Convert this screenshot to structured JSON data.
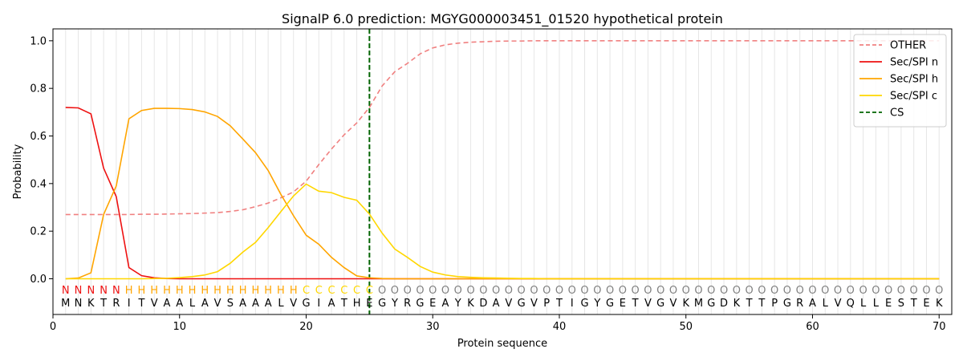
{
  "chart_data": {
    "type": "line",
    "title": "SignalP 6.0 prediction: MGYG000003451_01520 hypothetical protein",
    "xlabel": "Protein sequence",
    "ylabel": "Probability",
    "xlim": [
      0,
      71
    ],
    "ylim": [
      -0.15,
      1.05
    ],
    "xticks": [
      0,
      10,
      20,
      30,
      40,
      50,
      60,
      70
    ],
    "yticks": [
      0.0,
      0.2,
      0.4,
      0.6,
      0.8,
      1.0
    ],
    "grid": "vertical lines at each residue",
    "legend_position": "top-right",
    "x": [
      1,
      2,
      3,
      4,
      5,
      6,
      7,
      8,
      9,
      10,
      11,
      12,
      13,
      14,
      15,
      16,
      17,
      18,
      19,
      20,
      21,
      22,
      23,
      24,
      25,
      26,
      27,
      28,
      29,
      30,
      31,
      32,
      33,
      34,
      35,
      36,
      37,
      38,
      39,
      40,
      41,
      42,
      43,
      44,
      45,
      46,
      47,
      48,
      49,
      50,
      51,
      52,
      53,
      54,
      55,
      56,
      57,
      58,
      59,
      60,
      61,
      62,
      63,
      64,
      65,
      66,
      67,
      68,
      69,
      70
    ],
    "sequence": [
      "M",
      "N",
      "K",
      "T",
      "R",
      "I",
      "T",
      "V",
      "A",
      "A",
      "L",
      "A",
      "V",
      "S",
      "A",
      "A",
      "A",
      "L",
      "V",
      "G",
      "I",
      "A",
      "T",
      "H",
      "E",
      "G",
      "Y",
      "R",
      "G",
      "E",
      "A",
      "Y",
      "K",
      "D",
      "A",
      "V",
      "G",
      "V",
      "P",
      "T",
      "I",
      "G",
      "Y",
      "G",
      "E",
      "T",
      "V",
      "G",
      "V",
      "K",
      "M",
      "G",
      "D",
      "K",
      "T",
      "T",
      "P",
      "G",
      "R",
      "A",
      "L",
      "V",
      "Q",
      "L",
      "L",
      "E",
      "S",
      "T",
      "E",
      "K"
    ],
    "region_labels": [
      "N",
      "N",
      "N",
      "N",
      "N",
      "H",
      "H",
      "H",
      "H",
      "H",
      "H",
      "H",
      "H",
      "H",
      "H",
      "H",
      "H",
      "H",
      "H",
      "C",
      "C",
      "C",
      "C",
      "C",
      "C",
      "O",
      "O",
      "O",
      "O",
      "O",
      "O",
      "O",
      "O",
      "O",
      "O",
      "O",
      "O",
      "O",
      "O",
      "O",
      "O",
      "O",
      "O",
      "O",
      "O",
      "O",
      "O",
      "O",
      "O",
      "O",
      "O",
      "O",
      "O",
      "O",
      "O",
      "O",
      "O",
      "O",
      "O",
      "O",
      "O",
      "O",
      "O",
      "O",
      "O",
      "O",
      "O",
      "O",
      "O",
      "O"
    ],
    "region_colors": {
      "N": "#ee1111",
      "H": "#ffa500",
      "C": "#ffd700",
      "O": "#808080"
    },
    "series": [
      {
        "name": "OTHER",
        "color": "#f08080",
        "style": "dashed",
        "values": [
          0.27,
          0.27,
          0.27,
          0.27,
          0.27,
          0.27,
          0.271,
          0.271,
          0.272,
          0.273,
          0.274,
          0.276,
          0.278,
          0.283,
          0.29,
          0.303,
          0.318,
          0.34,
          0.365,
          0.41,
          0.48,
          0.545,
          0.605,
          0.655,
          0.72,
          0.81,
          0.87,
          0.905,
          0.945,
          0.97,
          0.983,
          0.99,
          0.994,
          0.996,
          0.998,
          0.999,
          0.999,
          1.0,
          1.0,
          1.0,
          1.0,
          1.0,
          1.0,
          1.0,
          1.0,
          1.0,
          1.0,
          1.0,
          1.0,
          1.0,
          1.0,
          1.0,
          1.0,
          1.0,
          1.0,
          1.0,
          1.0,
          1.0,
          1.0,
          1.0,
          1.0,
          1.0,
          1.0,
          1.0,
          1.0,
          1.0,
          1.0,
          1.0,
          1.0,
          1.0
        ]
      },
      {
        "name": "Sec/SPI n",
        "color": "#ee1111",
        "style": "solid",
        "values": [
          0.72,
          0.718,
          0.693,
          0.465,
          0.345,
          0.047,
          0.013,
          0.004,
          0.001,
          0.0,
          0.0,
          0.0,
          0.0,
          0.0,
          0.0,
          0.0,
          0.0,
          0.0,
          0.0,
          0.0,
          0.0,
          0.0,
          0.0,
          0.0,
          0.0,
          0.0,
          0.0,
          0.0,
          0.0,
          0.0,
          0.0,
          0.0,
          0.0,
          0.0,
          0.0,
          0.0,
          0.0,
          0.0,
          0.0,
          0.0,
          0.0,
          0.0,
          0.0,
          0.0,
          0.0,
          0.0,
          0.0,
          0.0,
          0.0,
          0.0,
          0.0,
          0.0,
          0.0,
          0.0,
          0.0,
          0.0,
          0.0,
          0.0,
          0.0,
          0.0,
          0.0,
          0.0,
          0.0,
          0.0,
          0.0,
          0.0,
          0.0,
          0.0,
          0.0,
          0.0
        ]
      },
      {
        "name": "Sec/SPI h",
        "color": "#ffa500",
        "style": "solid",
        "values": [
          0.0,
          0.003,
          0.025,
          0.27,
          0.39,
          0.672,
          0.707,
          0.716,
          0.716,
          0.715,
          0.711,
          0.701,
          0.682,
          0.643,
          0.587,
          0.53,
          0.455,
          0.355,
          0.265,
          0.183,
          0.145,
          0.09,
          0.047,
          0.012,
          0.004,
          0.001,
          0.0,
          0.0,
          0.0,
          0.0,
          0.0,
          0.0,
          0.0,
          0.0,
          0.0,
          0.0,
          0.0,
          0.0,
          0.0,
          0.0,
          0.0,
          0.0,
          0.0,
          0.0,
          0.0,
          0.0,
          0.0,
          0.0,
          0.0,
          0.0,
          0.0,
          0.0,
          0.0,
          0.0,
          0.0,
          0.0,
          0.0,
          0.0,
          0.0,
          0.0,
          0.0,
          0.0,
          0.0,
          0.0,
          0.0,
          0.0,
          0.0,
          0.0,
          0.0,
          0.0
        ]
      },
      {
        "name": "Sec/SPI c",
        "color": "#ffd700",
        "style": "solid",
        "values": [
          0.0,
          0.0,
          0.0,
          0.0,
          0.0,
          0.0,
          0.0,
          0.001,
          0.002,
          0.005,
          0.009,
          0.016,
          0.03,
          0.065,
          0.112,
          0.153,
          0.215,
          0.282,
          0.348,
          0.398,
          0.368,
          0.362,
          0.342,
          0.33,
          0.272,
          0.192,
          0.125,
          0.09,
          0.052,
          0.028,
          0.016,
          0.009,
          0.006,
          0.004,
          0.003,
          0.002,
          0.001,
          0.001,
          0.0,
          0.0,
          0.0,
          0.0,
          0.0,
          0.0,
          0.0,
          0.0,
          0.0,
          0.0,
          0.0,
          0.0,
          0.0,
          0.0,
          0.0,
          0.0,
          0.0,
          0.0,
          0.0,
          0.0,
          0.0,
          0.0,
          0.0,
          0.0,
          0.0,
          0.0,
          0.0,
          0.0,
          0.0,
          0.0,
          0.0,
          0.0
        ]
      }
    ],
    "cs": {
      "name": "CS",
      "x": 25,
      "color": "#006400",
      "style": "dashed"
    }
  }
}
